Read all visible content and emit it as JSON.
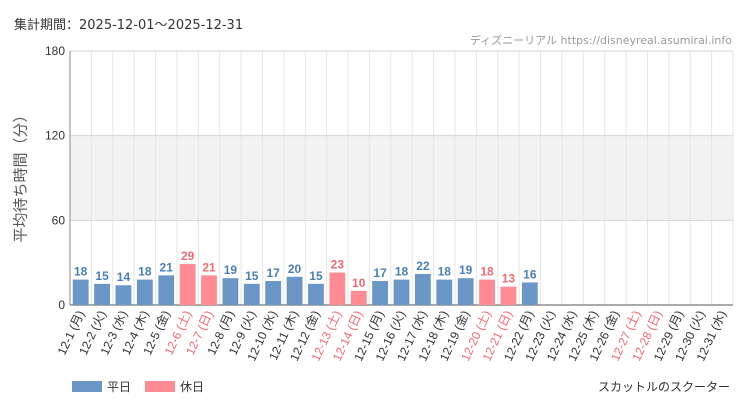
{
  "header": {
    "period": "集計期間：2025-12-01～2025-12-31",
    "source": "ディズニーリアル https://disneyreal.asumirai.info"
  },
  "footer": {
    "attraction": "スカットルのスクーター"
  },
  "colors": {
    "weekday": "#6a97c6",
    "holiday": "#ff8c94",
    "weekday_text": "#4a7fb5",
    "holiday_text": "#ee6b73",
    "band": "#f2f2f2",
    "grid": "#e6e6e6"
  },
  "chart_data": {
    "type": "bar",
    "title": "",
    "xlabel": "",
    "ylabel": "平均待ち時間（分）",
    "ylim": [
      0,
      180
    ],
    "yticks": [
      0,
      60,
      120,
      180
    ],
    "shaded_band": [
      60,
      120
    ],
    "legend": [
      {
        "name": "平日",
        "kind": "weekday"
      },
      {
        "name": "休日",
        "kind": "holiday"
      }
    ],
    "categories": [
      "12-1 (月)",
      "12-2 (火)",
      "12-3 (水)",
      "12-4 (木)",
      "12-5 (金)",
      "12-6 (土)",
      "12-7 (日)",
      "12-8 (月)",
      "12-9 (火)",
      "12-10 (水)",
      "12-11 (木)",
      "12-12 (金)",
      "12-13 (土)",
      "12-14 (日)",
      "12-15 (月)",
      "12-16 (火)",
      "12-17 (水)",
      "12-18 (木)",
      "12-19 (金)",
      "12-20 (土)",
      "12-21 (日)",
      "12-22 (月)",
      "12-23 (火)",
      "12-24 (水)",
      "12-25 (木)",
      "12-26 (金)",
      "12-27 (土)",
      "12-28 (日)",
      "12-29 (月)",
      "12-30 (火)",
      "12-31 (水)"
    ],
    "kinds": [
      "weekday",
      "weekday",
      "weekday",
      "weekday",
      "weekday",
      "holiday",
      "holiday",
      "weekday",
      "weekday",
      "weekday",
      "weekday",
      "weekday",
      "holiday",
      "holiday",
      "weekday",
      "weekday",
      "weekday",
      "weekday",
      "weekday",
      "holiday",
      "holiday",
      "weekday",
      "weekday",
      "weekday",
      "weekday",
      "weekday",
      "holiday",
      "holiday",
      "weekday",
      "weekday",
      "weekday"
    ],
    "values": [
      18,
      15,
      14,
      18,
      21,
      29,
      21,
      19,
      15,
      17,
      20,
      15,
      23,
      10,
      17,
      18,
      22,
      18,
      19,
      18,
      13,
      16,
      null,
      null,
      null,
      null,
      null,
      null,
      null,
      null,
      null
    ]
  }
}
